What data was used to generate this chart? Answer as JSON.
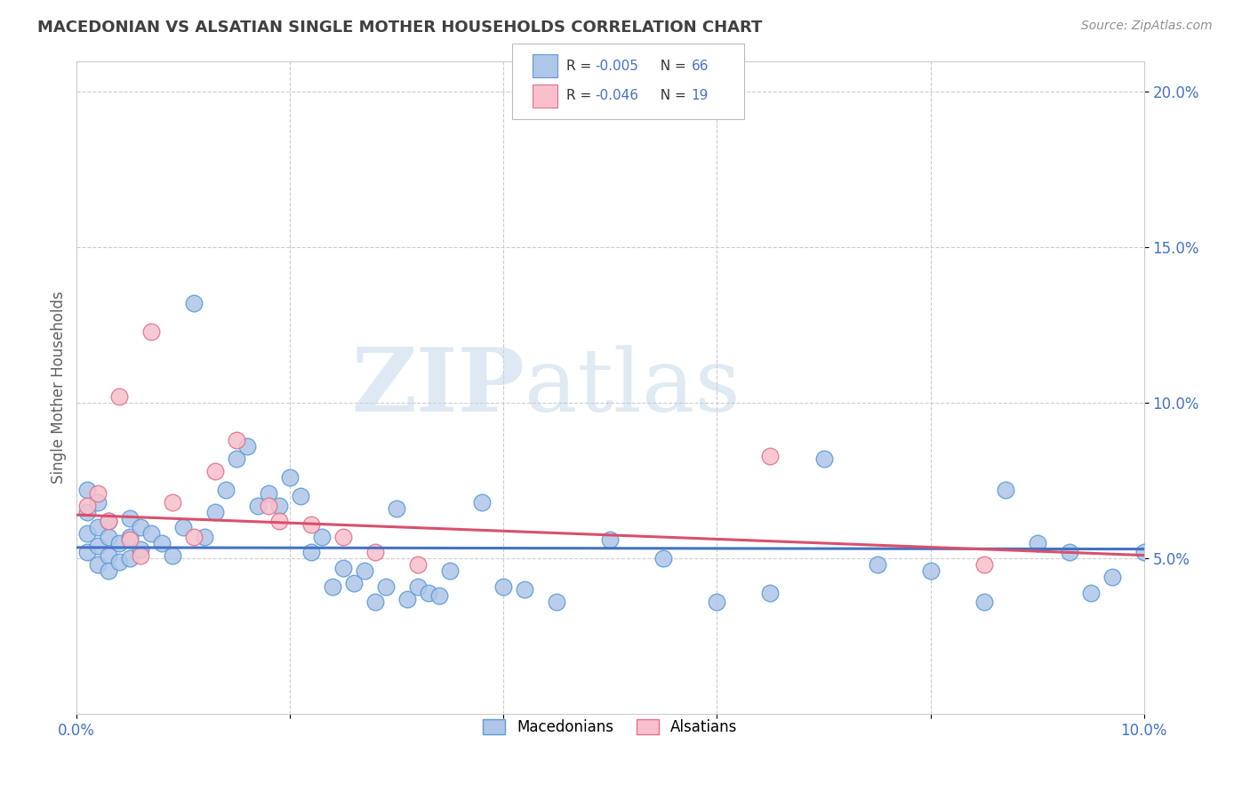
{
  "title": "MACEDONIAN VS ALSATIAN SINGLE MOTHER HOUSEHOLDS CORRELATION CHART",
  "source": "Source: ZipAtlas.com",
  "ylabel": "Single Mother Households",
  "xlim": [
    0.0,
    0.1
  ],
  "ylim": [
    0.0,
    0.21
  ],
  "yticks": [
    0.05,
    0.1,
    0.15,
    0.2
  ],
  "ytick_labels": [
    "5.0%",
    "10.0%",
    "15.0%",
    "20.0%"
  ],
  "legend_macedonian_R": "-0.005",
  "legend_macedonian_N": "66",
  "legend_alsatian_R": "-0.046",
  "legend_alsatian_N": "19",
  "color_macedonian_fill": "#aec6e8",
  "color_macedonian_edge": "#5b9bd5",
  "color_alsatian_fill": "#f9c0cb",
  "color_alsatian_edge": "#e07090",
  "color_blue_line": "#4472c4",
  "color_pink_line": "#d9506a",
  "color_text_blue": "#4472c4",
  "color_title": "#404040",
  "color_source": "#909090",
  "watermark_zip": "ZIP",
  "watermark_atlas": "atlas",
  "mac_trend_x0": 0.0,
  "mac_trend_y0": 0.0535,
  "mac_trend_x1": 0.1,
  "mac_trend_y1": 0.053,
  "als_trend_x0": 0.0,
  "als_trend_y0": 0.064,
  "als_trend_x1": 0.1,
  "als_trend_y1": 0.051,
  "macedonian_x": [
    0.001,
    0.001,
    0.001,
    0.001,
    0.002,
    0.002,
    0.002,
    0.002,
    0.003,
    0.003,
    0.003,
    0.003,
    0.004,
    0.004,
    0.005,
    0.005,
    0.005,
    0.006,
    0.006,
    0.007,
    0.008,
    0.009,
    0.01,
    0.011,
    0.012,
    0.013,
    0.014,
    0.015,
    0.016,
    0.017,
    0.018,
    0.019,
    0.02,
    0.021,
    0.022,
    0.023,
    0.024,
    0.025,
    0.026,
    0.027,
    0.028,
    0.029,
    0.03,
    0.031,
    0.032,
    0.033,
    0.034,
    0.035,
    0.038,
    0.04,
    0.042,
    0.045,
    0.05,
    0.055,
    0.06,
    0.065,
    0.07,
    0.075,
    0.08,
    0.085,
    0.087,
    0.09,
    0.093,
    0.095,
    0.097,
    0.1
  ],
  "macedonian_y": [
    0.072,
    0.065,
    0.058,
    0.052,
    0.068,
    0.06,
    0.054,
    0.048,
    0.062,
    0.057,
    0.051,
    0.046,
    0.055,
    0.049,
    0.063,
    0.057,
    0.05,
    0.06,
    0.053,
    0.058,
    0.055,
    0.051,
    0.06,
    0.132,
    0.057,
    0.065,
    0.072,
    0.082,
    0.086,
    0.067,
    0.071,
    0.067,
    0.076,
    0.07,
    0.052,
    0.057,
    0.041,
    0.047,
    0.042,
    0.046,
    0.036,
    0.041,
    0.066,
    0.037,
    0.041,
    0.039,
    0.038,
    0.046,
    0.068,
    0.041,
    0.04,
    0.036,
    0.056,
    0.05,
    0.036,
    0.039,
    0.082,
    0.048,
    0.046,
    0.036,
    0.072,
    0.055,
    0.052,
    0.039,
    0.044,
    0.052
  ],
  "alsatian_x": [
    0.001,
    0.002,
    0.003,
    0.004,
    0.005,
    0.006,
    0.007,
    0.009,
    0.011,
    0.013,
    0.015,
    0.018,
    0.019,
    0.022,
    0.025,
    0.028,
    0.032,
    0.065,
    0.085
  ],
  "alsatian_y": [
    0.067,
    0.071,
    0.062,
    0.102,
    0.056,
    0.051,
    0.123,
    0.068,
    0.057,
    0.078,
    0.088,
    0.067,
    0.062,
    0.061,
    0.057,
    0.052,
    0.048,
    0.083,
    0.048
  ]
}
